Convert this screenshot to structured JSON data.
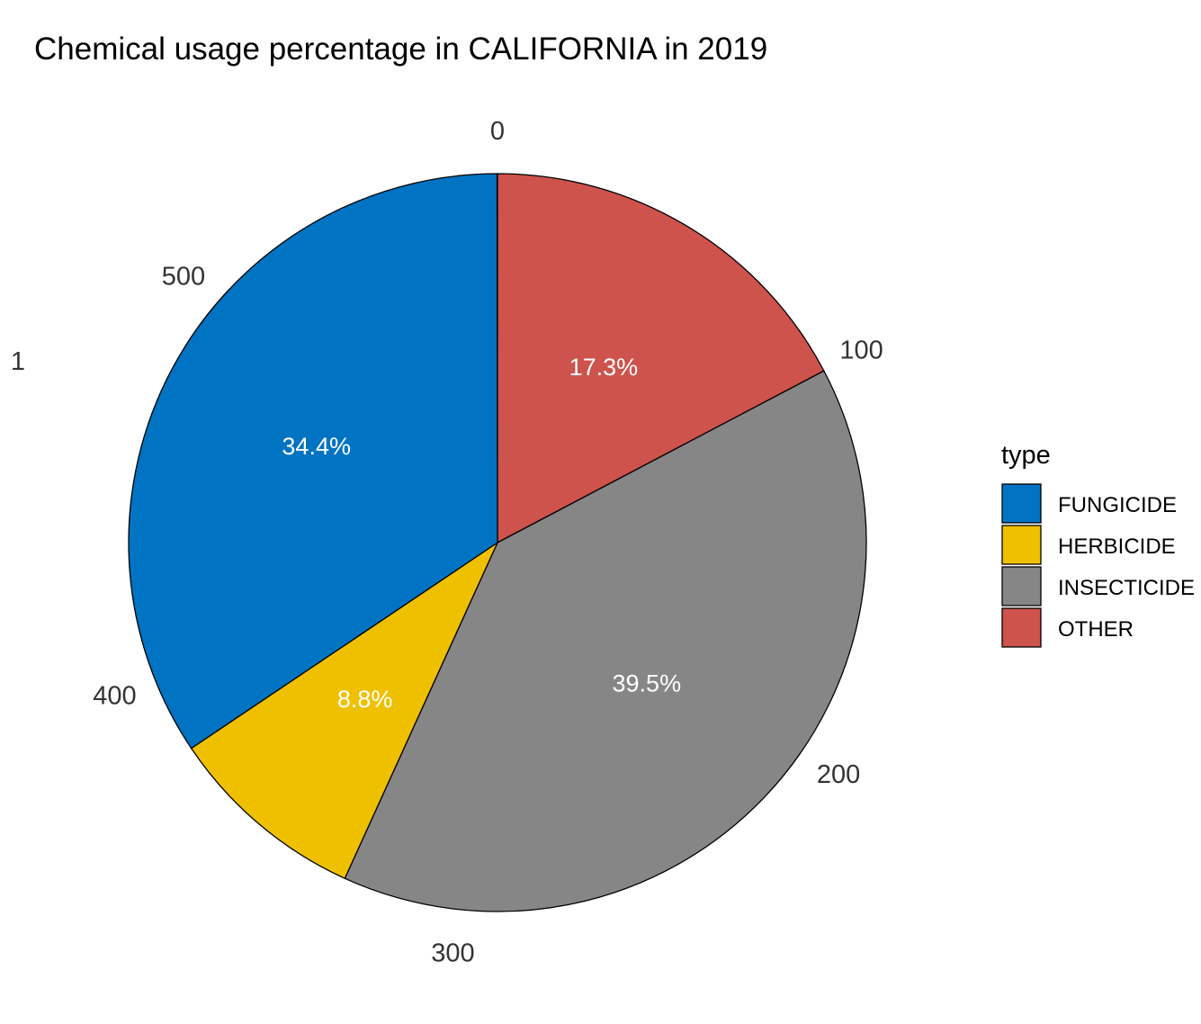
{
  "chart_data": {
    "type": "pie",
    "title": "Chemical usage percentage in CALIFORNIA in 2019",
    "theta_axis": {
      "range": [
        0,
        580
      ],
      "ticks": [
        0,
        100,
        200,
        300,
        400,
        500
      ],
      "tick_labels": [
        "0",
        "100",
        "200",
        "300",
        "400",
        "500"
      ],
      "direction": "clockwise",
      "start": "top"
    },
    "radial_tick_label": "1",
    "slices": [
      {
        "label": "OTHER",
        "value": 100.3,
        "percent_label": "17.3%",
        "color": "#CD534C"
      },
      {
        "label": "INSECTICIDE",
        "value": 229.1,
        "percent_label": "39.5%",
        "color": "#868686"
      },
      {
        "label": "HERBICIDE",
        "value": 51.0,
        "percent_label": "8.8%",
        "color": "#EFC000"
      },
      {
        "label": "FUNGICIDE",
        "value": 199.5,
        "percent_label": "34.4%",
        "color": "#0073C2"
      }
    ],
    "legend": {
      "title": "type",
      "placement": "right",
      "entries": [
        {
          "label": "FUNGICIDE",
          "color": "#0073C2"
        },
        {
          "label": "HERBICIDE",
          "color": "#EFC000"
        },
        {
          "label": "INSECTICIDE",
          "color": "#868686"
        },
        {
          "label": "OTHER",
          "color": "#CD534C"
        }
      ]
    },
    "grid": false
  }
}
